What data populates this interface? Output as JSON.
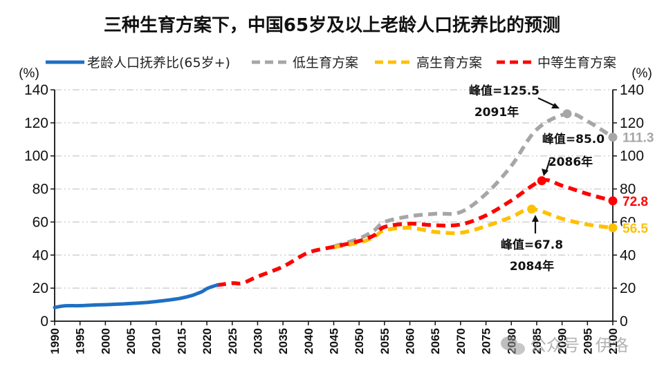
{
  "chart_data": {
    "type": "line",
    "title": "三种生育方案下，中国65岁及以上老龄人口抚养比的预测",
    "xlabel": "",
    "ylabel": "(%)",
    "ylabel_right": "(%)",
    "xlim": [
      1990,
      2100
    ],
    "ylim": [
      0,
      140
    ],
    "grid": true,
    "legend_position": "top",
    "x_ticks": [
      "1990",
      "1995",
      "2000",
      "2005",
      "2010",
      "2015",
      "2020",
      "2025",
      "2030",
      "2035",
      "2040",
      "2045",
      "2050",
      "2055",
      "2060",
      "2065",
      "2070",
      "2075",
      "2080",
      "2085",
      "2090",
      "2095",
      "2100"
    ],
    "y_ticks": [
      "0",
      "20",
      "40",
      "60",
      "80",
      "100",
      "120",
      "140"
    ],
    "series": [
      {
        "name": "老龄人口抚养比(65岁+)",
        "style": "solid",
        "color": "#1f6fc2",
        "x": [
          1990,
          1992,
          1995,
          1998,
          2000,
          2003,
          2005,
          2008,
          2010,
          2013,
          2015,
          2017,
          2018,
          2019,
          2020,
          2021,
          2022
        ],
        "y": [
          8.3,
          9.3,
          9.4,
          9.8,
          10.0,
          10.4,
          10.7,
          11.3,
          11.9,
          13.0,
          14.0,
          15.5,
          16.6,
          17.8,
          19.7,
          20.9,
          21.8
        ]
      },
      {
        "name": "低生育方案",
        "style": "dashed",
        "color": "#a6a6a6",
        "x": [
          2045,
          2050,
          2053,
          2055,
          2060,
          2065,
          2070,
          2075,
          2080,
          2085,
          2091,
          2095,
          2100
        ],
        "y": [
          45.2,
          50.0,
          55.0,
          60.0,
          63.5,
          65.0,
          66.0,
          77.0,
          94.0,
          116.0,
          125.5,
          121.0,
          111.3
        ]
      },
      {
        "name": "高生育方案",
        "style": "dashed",
        "color": "#ffc000",
        "x": [
          2045,
          2050,
          2053,
          2055,
          2060,
          2065,
          2070,
          2075,
          2080,
          2084,
          2090,
          2095,
          2100
        ],
        "y": [
          44.8,
          47.5,
          51.0,
          55.0,
          56.5,
          54.0,
          53.5,
          57.5,
          63.0,
          67.8,
          62.0,
          58.5,
          56.5
        ]
      },
      {
        "name": "中等生育方案",
        "style": "dashed",
        "color": "#ff0000",
        "x": [
          2022,
          2025,
          2027,
          2030,
          2035,
          2040,
          2045,
          2050,
          2053,
          2055,
          2060,
          2065,
          2070,
          2075,
          2080,
          2086,
          2090,
          2095,
          2100
        ],
        "y": [
          21.8,
          23.0,
          23.0,
          27.0,
          33.0,
          41.5,
          45.0,
          48.5,
          52.0,
          57.0,
          59.0,
          58.0,
          58.5,
          64.0,
          73.0,
          85.0,
          82.0,
          77.0,
          72.8
        ]
      }
    ],
    "markers": [
      {
        "series": "低生育方案",
        "x": 2091,
        "y": 125.5
      },
      {
        "series": "低生育方案",
        "x": 2100,
        "y": 111.3
      },
      {
        "series": "中等生育方案",
        "x": 2086,
        "y": 85.0
      },
      {
        "series": "中等生育方案",
        "x": 2100,
        "y": 72.8
      },
      {
        "series": "高生育方案",
        "x": 2084,
        "y": 67.8
      },
      {
        "series": "高生育方案",
        "x": 2100,
        "y": 56.5
      }
    ],
    "annotations": [
      {
        "text_line1": "峰值=125.5",
        "text_line2": "2091年",
        "x": 2091,
        "y": 125.5
      },
      {
        "text_line1": "峰值=85.0",
        "text_line2": "2086年",
        "x": 2086,
        "y": 85.0
      },
      {
        "text_line1": "峰值=67.8",
        "text_line2": "2084年",
        "x": 2084,
        "y": 67.8
      }
    ],
    "end_labels": [
      {
        "text": "111.3",
        "color": "#a6a6a6",
        "y": 111.3
      },
      {
        "text": "72.8",
        "color": "#ff0000",
        "y": 72.8
      },
      {
        "text": "56.5",
        "color": "#ffc000",
        "y": 56.5
      }
    ]
  },
  "watermark": "公众号 · 伊洛"
}
